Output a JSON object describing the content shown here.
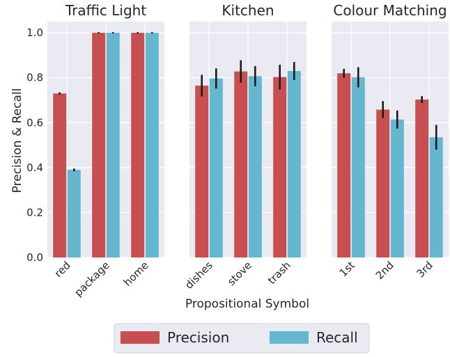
{
  "chart_data": {
    "type": "bar",
    "ylabel": "Precision & Recall",
    "xlabel": "Propositional Symbol",
    "ylim": [
      0,
      1.05
    ],
    "yticks": [
      "0.0",
      "0.2",
      "0.4",
      "0.6",
      "0.8",
      "1.0"
    ],
    "grid": true,
    "legend_position": "bottom-center",
    "legend": [
      {
        "name": "Precision",
        "color": "#c84f51"
      },
      {
        "name": "Recall",
        "color": "#65b7d0"
      }
    ],
    "panels": [
      {
        "title": "Traffic Light",
        "categories": [
          "red",
          "package",
          "home"
        ],
        "series": [
          {
            "name": "Precision",
            "values": [
              0.73,
              1.0,
              1.0
            ],
            "errors": [
              0.005,
              0.003,
              0.003
            ]
          },
          {
            "name": "Recall",
            "values": [
              0.39,
              1.0,
              1.0
            ],
            "errors": [
              0.006,
              0.003,
              0.003
            ]
          }
        ]
      },
      {
        "title": "Kitchen",
        "categories": [
          "dishes",
          "stove",
          "trash"
        ],
        "series": [
          {
            "name": "Precision",
            "values": [
              0.765,
              0.828,
              0.803
            ],
            "errors": [
              0.048,
              0.05,
              0.055
            ]
          },
          {
            "name": "Recall",
            "values": [
              0.797,
              0.807,
              0.83
            ],
            "errors": [
              0.045,
              0.045,
              0.04
            ]
          }
        ]
      },
      {
        "title": "Colour Matching",
        "categories": [
          "1st",
          "2nd",
          "3rd"
        ],
        "series": [
          {
            "name": "Precision",
            "values": [
              0.82,
              0.658,
              0.703
            ],
            "errors": [
              0.02,
              0.038,
              0.015
            ]
          },
          {
            "name": "Recall",
            "values": [
              0.802,
              0.614,
              0.535
            ],
            "errors": [
              0.045,
              0.04,
              0.055
            ]
          }
        ]
      }
    ]
  }
}
